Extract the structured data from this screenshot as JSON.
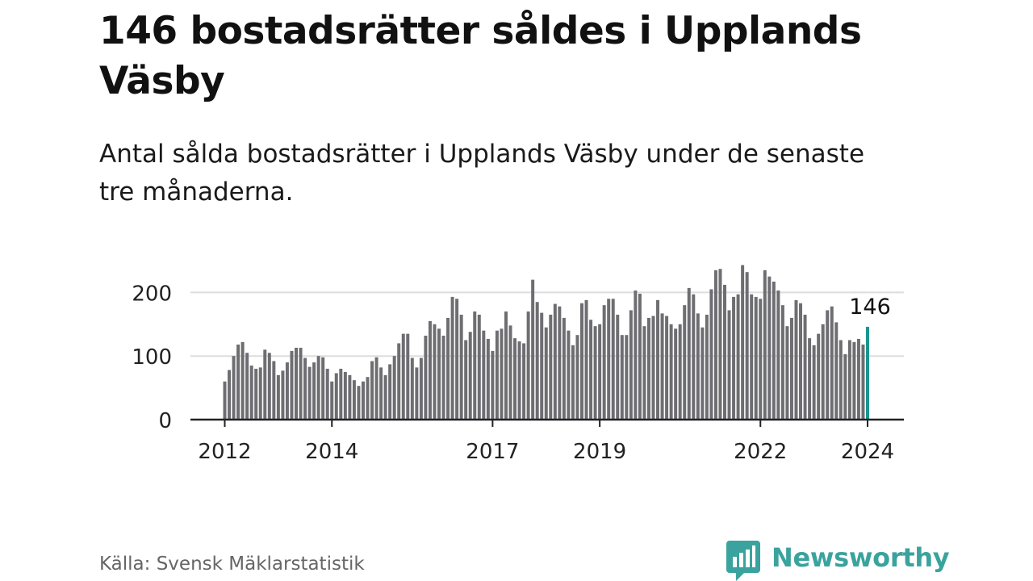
{
  "header": {
    "title": "146 bostadsrätter såldes i Upplands Väsby",
    "subtitle": "Antal sålda bostadsrätter i Upplands Väsby under de senaste tre månaderna."
  },
  "footer": {
    "source": "Källa: Svensk Mäklarstatistik",
    "brand": "Newsworthy"
  },
  "colors": {
    "bar": "#6e6d72",
    "highlight": "#17958e",
    "grid": "#dddddd",
    "axis": "#222222",
    "brand": "#3aa39d"
  },
  "chart_data": {
    "type": "bar",
    "title": "Antal sålda bostadsrätter i Upplands Väsby under de senaste tre månaderna.",
    "xlabel": "",
    "ylabel": "",
    "ylim": [
      0,
      250
    ],
    "yticks": [
      0,
      100,
      200
    ],
    "xtick_labels": [
      "2012",
      "2014",
      "2017",
      "2019",
      "2022",
      "2024"
    ],
    "start": "2012-01",
    "end": "2024-03",
    "highlight_label": "146",
    "values": [
      60,
      78,
      100,
      118,
      122,
      105,
      85,
      80,
      82,
      110,
      105,
      92,
      70,
      77,
      90,
      108,
      113,
      113,
      97,
      83,
      90,
      100,
      98,
      80,
      60,
      73,
      80,
      75,
      70,
      62,
      53,
      60,
      67,
      92,
      98,
      82,
      70,
      87,
      100,
      120,
      135,
      135,
      97,
      82,
      97,
      132,
      155,
      150,
      143,
      132,
      160,
      193,
      190,
      165,
      125,
      138,
      170,
      165,
      140,
      127,
      108,
      140,
      143,
      170,
      148,
      128,
      123,
      120,
      170,
      220,
      185,
      168,
      145,
      165,
      182,
      178,
      160,
      140,
      117,
      133,
      183,
      188,
      157,
      147,
      150,
      180,
      190,
      190,
      165,
      133,
      133,
      172,
      203,
      198,
      147,
      160,
      163,
      188,
      167,
      163,
      150,
      143,
      150,
      180,
      207,
      197,
      167,
      145,
      165,
      205,
      235,
      237,
      212,
      172,
      193,
      197,
      243,
      232,
      197,
      193,
      190,
      235,
      225,
      217,
      203,
      180,
      147,
      160,
      188,
      183,
      165,
      128,
      117,
      135,
      150,
      172,
      178,
      153,
      125,
      103,
      125,
      122,
      127,
      118,
      146
    ]
  }
}
